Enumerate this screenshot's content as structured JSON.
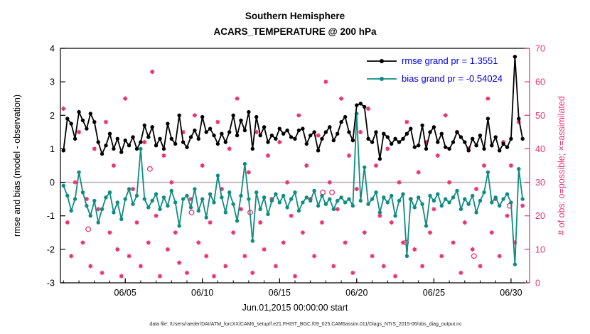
{
  "window": {
    "background": "#ffffff"
  },
  "chart_data": {
    "type": "line",
    "title": "Southern Hemisphere",
    "subtitle": "ACARS_TEMPERATURE @ 200 hPa",
    "xlabel": "Jun.01,2015 00:00:00 start",
    "ylabel_left": "rmse and bias (model - observation)",
    "ylabel_right": "# of obs: o=possible; ×=assimilated",
    "footer_note": "data file: /Users/raeder/DAI/ATM_forcXX/CAM6_setup/f.e21.FHIST_BGC.f09_025.CAM6assim.011/Diags_NTrS_2015-06/obs_diag_output.nc",
    "xlim": [
      0.8,
      31.2
    ],
    "ylim_left": [
      -3,
      4
    ],
    "ylim_right": [
      0,
      70
    ],
    "x_major_ticks": [
      5,
      10,
      15,
      20,
      25,
      30
    ],
    "x_major_tick_labels": [
      "06/05",
      "06/10",
      "06/15",
      "06/20",
      "06/25",
      "06/30"
    ],
    "x_minor_tick_step": 1,
    "y_left_ticks": [
      -3,
      -2,
      -1,
      0,
      1,
      2,
      3,
      4
    ],
    "y_right_ticks": [
      0,
      10,
      20,
      30,
      40,
      50,
      60,
      70
    ],
    "zero_line_value": 0,
    "grid": false,
    "legend_position": "top-right-inside",
    "colors": {
      "rmse": "#000000",
      "bias": "#0f8c82",
      "obs": "#e8316f",
      "legend_text": "#0000e6",
      "zero_line": "#bdb4bb",
      "axis": "#000000"
    },
    "x_start": 1,
    "x_step": 0.25,
    "rmse_grand_pr": 1.3551,
    "bias_grand_pr": -0.54024,
    "series": [
      {
        "name": "rmse grand pr = 1.3551",
        "axis": "left",
        "type": "line+marker",
        "values": [
          0.95,
          1.9,
          1.75,
          1.3,
          2.1,
          1.85,
          1.6,
          2.05,
          1.8,
          1.2,
          0.85,
          1.1,
          1.45,
          1.0,
          1.3,
          0.9,
          1.25,
          1.1,
          1.35,
          1.0,
          1.2,
          1.7,
          1.35,
          1.65,
          1.1,
          1.3,
          1.0,
          1.75,
          1.3,
          1.15,
          2.0,
          1.2,
          1.05,
          1.35,
          1.55,
          1.3,
          1.95,
          1.5,
          1.6,
          1.4,
          1.15,
          1.45,
          1.2,
          1.5,
          2.0,
          1.4,
          1.85,
          1.55,
          2.1,
          1.0,
          1.95,
          1.4,
          1.65,
          1.2,
          1.4,
          1.3,
          1.6,
          1.45,
          1.55,
          1.35,
          1.3,
          1.55,
          1.6,
          1.15,
          1.4,
          1.5,
          0.95,
          1.3,
          1.5,
          1.65,
          1.25,
          1.45,
          1.8,
          1.95,
          1.5,
          1.25,
          2.3,
          2.35,
          2.25,
          1.3,
          1.2,
          1.5,
          0.7,
          1.45,
          1.35,
          1.15,
          1.3,
          1.2,
          1.3,
          1.45,
          1.6,
          1.05,
          1.1,
          1.7,
          1.0,
          1.5,
          1.65,
          1.2,
          1.45,
          1.05,
          1.0,
          1.2,
          1.5,
          1.35,
          1.2,
          0.95,
          1.3,
          1.1,
          1.4,
          1.0,
          1.9,
          1.1,
          1.35,
          0.95,
          1.15,
          1.05,
          1.3,
          3.75,
          1.9,
          1.3
        ]
      },
      {
        "name": "bias grand pr = -0.54024",
        "axis": "left",
        "type": "line+marker",
        "values": [
          -0.1,
          -0.4,
          -0.85,
          -0.5,
          0.3,
          -0.3,
          -0.7,
          -1.0,
          -0.55,
          -1.2,
          -0.8,
          -0.45,
          -0.3,
          -0.9,
          -0.6,
          -1.1,
          -0.5,
          -0.2,
          -0.65,
          -0.4,
          1.0,
          -0.5,
          -0.75,
          -0.55,
          -0.35,
          -0.8,
          -0.45,
          -0.7,
          -0.25,
          -0.6,
          -1.3,
          -0.5,
          -0.4,
          -0.75,
          -0.2,
          -0.85,
          -0.5,
          -1.05,
          -0.35,
          -0.6,
          0.2,
          -0.45,
          -0.9,
          -0.3,
          -0.65,
          -1.15,
          -0.4,
          0.55,
          -0.5,
          -1.75,
          -0.3,
          -0.8,
          -0.45,
          -0.95,
          -0.55,
          -0.35,
          -0.6,
          -0.4,
          -0.75,
          -0.5,
          -0.3,
          -0.85,
          -0.6,
          -0.45,
          -0.55,
          -0.25,
          -0.7,
          -0.4,
          -0.65,
          -0.5,
          -0.8,
          -0.55,
          -0.45,
          -0.6,
          -0.5,
          -0.7,
          2.05,
          -0.55,
          0.45,
          -0.65,
          -0.5,
          -0.3,
          -0.9,
          -0.45,
          -0.6,
          -0.4,
          -1.0,
          -0.55,
          -0.35,
          -2.2,
          -0.5,
          -0.75,
          -0.45,
          -0.65,
          -1.3,
          -0.4,
          -0.55,
          -0.35,
          -0.7,
          -0.5,
          -0.6,
          -0.45,
          -0.25,
          -0.8,
          -0.5,
          -0.65,
          -0.4,
          -0.9,
          -0.55,
          -0.3,
          0.3,
          -0.6,
          -0.45,
          -0.7,
          -0.5,
          -0.35,
          -0.6,
          -2.45,
          0.4,
          -0.5
        ]
      },
      {
        "name": "# of obs assimilated (×)",
        "axis": "right",
        "type": "marker-asterisk",
        "values": [
          52,
          18,
          8,
          30,
          45,
          12,
          25,
          5,
          40,
          22,
          3,
          48,
          15,
          35,
          10,
          2,
          55,
          8,
          28,
          18,
          5,
          42,
          12,
          63,
          20,
          2,
          38,
          10,
          30,
          15,
          6,
          45,
          3,
          25,
          50,
          12,
          35,
          8,
          18,
          2,
          48,
          28,
          5,
          40,
          15,
          55,
          22,
          8,
          33,
          3,
          45,
          18,
          10,
          38,
          25,
          5,
          42,
          12,
          30,
          20,
          2,
          50,
          15,
          35,
          25,
          8,
          44,
          18,
          60,
          30,
          5,
          22,
          55,
          12,
          38,
          3,
          28,
          45,
          15,
          52,
          8,
          35,
          20,
          5,
          40,
          18,
          2,
          30,
          12,
          48,
          25,
          10,
          33,
          5,
          42,
          15,
          22,
          38,
          8,
          50,
          30,
          12,
          45,
          3,
          18,
          40,
          10,
          28,
          5,
          35,
          55,
          15,
          25,
          8,
          42,
          20,
          35,
          12,
          48,
          23
        ]
      },
      {
        "name": "# of obs possible (o)",
        "axis": "right",
        "type": "marker-circle",
        "points": [
          {
            "x": 2.6,
            "y": 16
          },
          {
            "x": 6.6,
            "y": 34
          },
          {
            "x": 9.3,
            "y": 21
          },
          {
            "x": 13.1,
            "y": 21
          },
          {
            "x": 17.8,
            "y": 27
          },
          {
            "x": 18.4,
            "y": 27
          },
          {
            "x": 23.2,
            "y": 12
          },
          {
            "x": 27.6,
            "y": 8
          },
          {
            "x": 29.9,
            "y": 23
          }
        ]
      }
    ],
    "legend": [
      {
        "label": "rmse grand pr = 1.3551",
        "color": "#000000"
      },
      {
        "label": "bias grand pr = -0.54024",
        "color": "#0f8c82"
      }
    ]
  }
}
